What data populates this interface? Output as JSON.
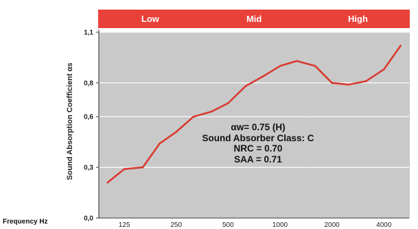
{
  "chart_data": {
    "type": "line",
    "ylabel": "Sound Absorption Coefficient αs",
    "xlabel": "Frequency Hz",
    "x_ticks": [
      "125",
      "250",
      "500",
      "1000",
      "2000",
      "4000"
    ],
    "y_ticks": [
      "0,0",
      "0,3",
      "0,6",
      "0,8",
      "1,1"
    ],
    "ylim": [
      0,
      1.1
    ],
    "grid": true,
    "bands": [
      {
        "label": "Low",
        "from": 125,
        "to": 250,
        "color": "#e8413a"
      },
      {
        "label": "Mid",
        "from": 500,
        "to": 1000,
        "color": "#e8413a"
      },
      {
        "label": "High",
        "from": 2000,
        "to": 4000,
        "color": "#e8413a"
      }
    ],
    "series": [
      {
        "color": "#d83a30",
        "x": [
          100,
          125,
          160,
          200,
          250,
          315,
          400,
          500,
          630,
          800,
          1000,
          1250,
          1600,
          2000,
          2500,
          3150,
          4000,
          5000
        ],
        "y": [
          0.21,
          0.29,
          0.3,
          0.44,
          0.51,
          0.6,
          0.63,
          0.68,
          0.78,
          0.84,
          0.9,
          0.93,
          0.9,
          0.8,
          0.79,
          0.81,
          0.88,
          1.02
        ]
      }
    ],
    "annotations": [
      "αw= 0.75 (H)",
      "Sound Absorber Class: C",
      "NRC = 0.70",
      "SAA = 0.71"
    ]
  }
}
